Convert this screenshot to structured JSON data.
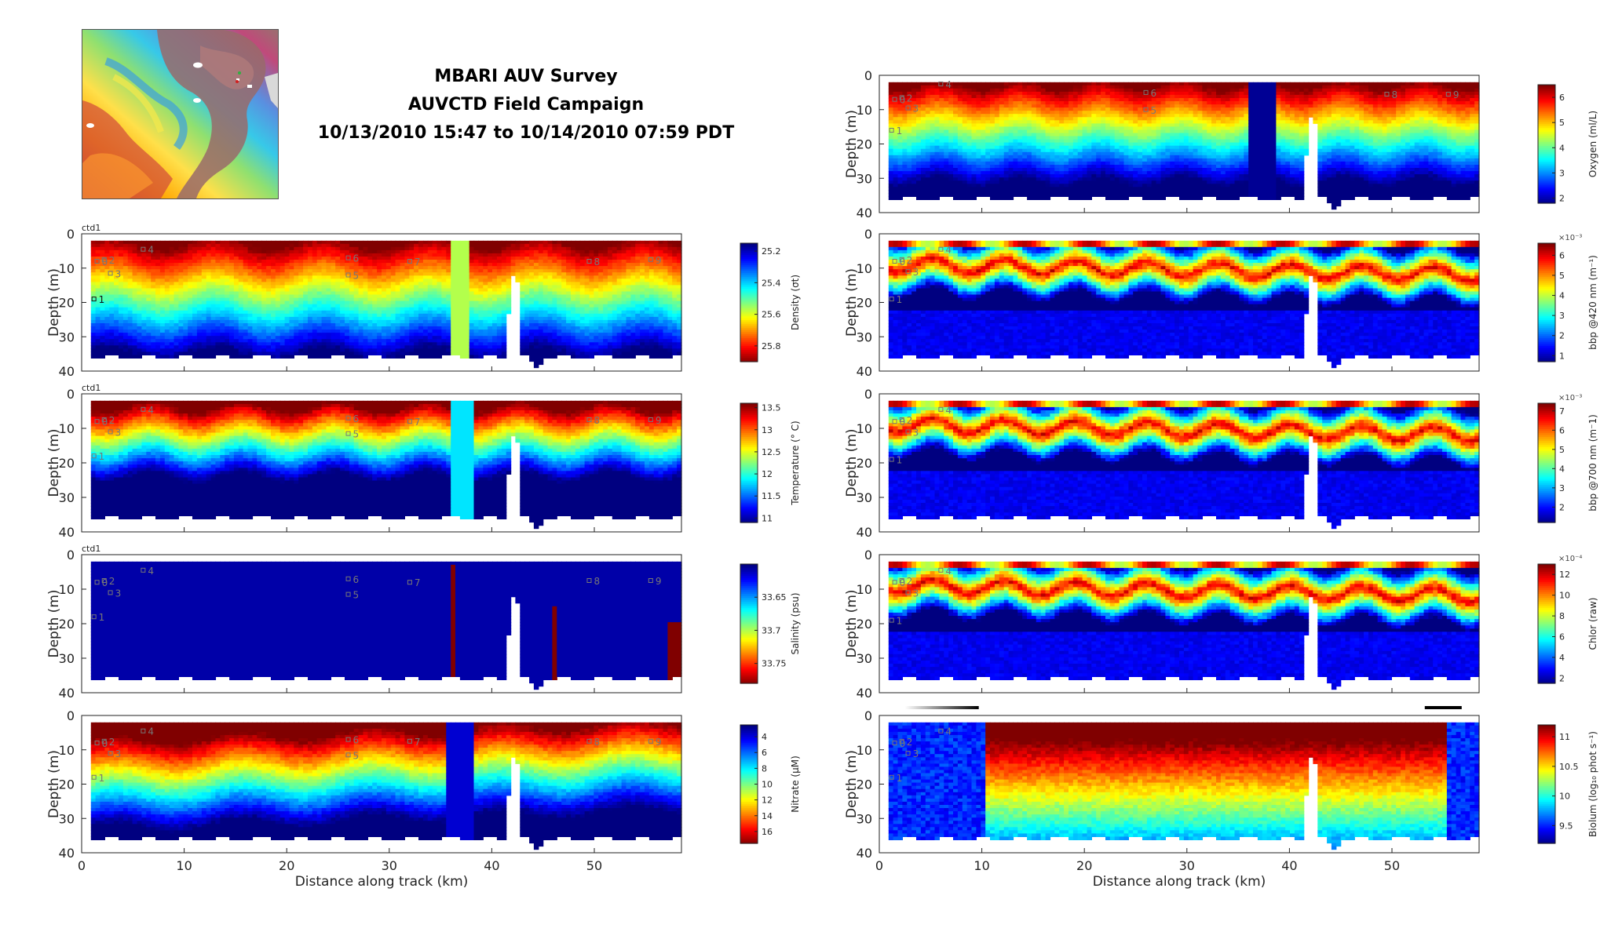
{
  "title_lines": [
    "MBARI AUV Survey",
    "AUVCTD Field Campaign",
    "10/13/2010 15:47 to 10/14/2010 07:59 PDT"
  ],
  "inset_map": {
    "name": "survey-area-map"
  },
  "chart_data": [
    {
      "type": "heatmap",
      "name": "Density panel",
      "ylabel": "Depth (m)",
      "xlabel": "",
      "corner_label": "ctd1",
      "xlim": [
        0,
        58.5
      ],
      "ylim": [
        40,
        0
      ],
      "xticks": [
        0,
        10,
        20,
        30,
        40,
        50
      ],
      "yticks": [
        0,
        10,
        20,
        30,
        40
      ],
      "colorbar": {
        "label": "Density (σt)",
        "tick_labels": [
          "25.2",
          "25.4",
          "25.6",
          "25.8"
        ],
        "tick_values": [
          25.2,
          25.4,
          25.6,
          25.8
        ],
        "range": [
          25.15,
          25.9
        ],
        "reversed": true,
        "colormap": "jet"
      },
      "profile": "density",
      "stations": [
        {
          "label": "0",
          "x": 1.5,
          "y": 8
        },
        {
          "label": "1",
          "x": 1.2,
          "y": 19
        },
        {
          "label": "2",
          "x": 2.2,
          "y": 7.5
        },
        {
          "label": "3",
          "x": 2.8,
          "y": 11.5
        },
        {
          "label": "4",
          "x": 6,
          "y": 4.5
        },
        {
          "label": "5",
          "x": 26,
          "y": 12
        },
        {
          "label": "6",
          "x": 26,
          "y": 7
        },
        {
          "label": "7",
          "x": 32,
          "y": 8
        },
        {
          "label": "8",
          "x": 49.5,
          "y": 8
        },
        {
          "label": "9",
          "x": 55.5,
          "y": 7.5
        }
      ]
    },
    {
      "type": "heatmap",
      "name": "Temperature panel",
      "ylabel": "Depth (m)",
      "xlabel": "",
      "corner_label": "ctd1",
      "xlim": [
        0,
        58.5
      ],
      "ylim": [
        40,
        0
      ],
      "xticks": [
        0,
        10,
        20,
        30,
        40,
        50
      ],
      "yticks": [
        0,
        10,
        20,
        30,
        40
      ],
      "colorbar": {
        "label": "Temperature (° C)",
        "tick_labels": [
          "13.5",
          "13",
          "12.5",
          "12",
          "11.5",
          "11"
        ],
        "tick_values": [
          13.5,
          13,
          12.5,
          12,
          11.5,
          11
        ],
        "range": [
          10.9,
          13.6
        ],
        "reversed": false,
        "colormap": "jet"
      },
      "profile": "temperature",
      "stations": [
        {
          "label": "0",
          "x": 1.5,
          "y": 8
        },
        {
          "label": "1",
          "x": 1.2,
          "y": 18
        },
        {
          "label": "2",
          "x": 2.2,
          "y": 7.5
        },
        {
          "label": "3",
          "x": 2.8,
          "y": 11
        },
        {
          "label": "4",
          "x": 6,
          "y": 4.5
        },
        {
          "label": "5",
          "x": 26,
          "y": 11.5
        },
        {
          "label": "6",
          "x": 26,
          "y": 7
        },
        {
          "label": "7",
          "x": 32,
          "y": 8
        },
        {
          "label": "8",
          "x": 49.5,
          "y": 7.5
        },
        {
          "label": "9",
          "x": 55.5,
          "y": 7.5
        }
      ]
    },
    {
      "type": "heatmap",
      "name": "Salinity panel",
      "ylabel": "Depth (m)",
      "xlabel": "",
      "corner_label": "ctd1",
      "xlim": [
        0,
        58.5
      ],
      "ylim": [
        40,
        0
      ],
      "xticks": [
        0,
        10,
        20,
        30,
        40,
        50
      ],
      "yticks": [
        0,
        10,
        20,
        30,
        40
      ],
      "colorbar": {
        "label": "Salinity (psu)",
        "tick_labels": [
          "33.65",
          "33.7",
          "33.75"
        ],
        "tick_values": [
          33.65,
          33.7,
          33.75
        ],
        "range": [
          33.6,
          33.78
        ],
        "reversed": true,
        "colormap": "jet"
      },
      "profile": "salinity",
      "stations": [
        {
          "label": "0",
          "x": 1.5,
          "y": 8
        },
        {
          "label": "1",
          "x": 1.2,
          "y": 18
        },
        {
          "label": "2",
          "x": 2.2,
          "y": 7.5
        },
        {
          "label": "3",
          "x": 2.8,
          "y": 11
        },
        {
          "label": "4",
          "x": 6,
          "y": 4.5
        },
        {
          "label": "5",
          "x": 26,
          "y": 11.5
        },
        {
          "label": "6",
          "x": 26,
          "y": 7
        },
        {
          "label": "7",
          "x": 32,
          "y": 8
        },
        {
          "label": "8",
          "x": 49.5,
          "y": 7.5
        },
        {
          "label": "9",
          "x": 55.5,
          "y": 7.5
        }
      ]
    },
    {
      "type": "heatmap",
      "name": "Nitrate panel",
      "ylabel": "Depth (m)",
      "xlabel": "Distance along track (km)",
      "corner_label": "",
      "xlim": [
        0,
        58.5
      ],
      "ylim": [
        40,
        0
      ],
      "xticks": [
        0,
        10,
        20,
        30,
        40,
        50
      ],
      "yticks": [
        0,
        10,
        20,
        30,
        40
      ],
      "colorbar": {
        "label": "Nitrate (μM)",
        "tick_labels": [
          "4",
          "6",
          "8",
          "10",
          "12",
          "14",
          "16"
        ],
        "tick_values": [
          4,
          6,
          8,
          10,
          12,
          14,
          16
        ],
        "range": [
          2.5,
          17.5
        ],
        "reversed": true,
        "colormap": "jet"
      },
      "profile": "nitrate",
      "stations": [
        {
          "label": "0",
          "x": 1.5,
          "y": 8
        },
        {
          "label": "1",
          "x": 1.2,
          "y": 18
        },
        {
          "label": "2",
          "x": 2.2,
          "y": 7.5
        },
        {
          "label": "3",
          "x": 2.8,
          "y": 11
        },
        {
          "label": "4",
          "x": 6,
          "y": 4.5
        },
        {
          "label": "5",
          "x": 26,
          "y": 11.5
        },
        {
          "label": "6",
          "x": 26,
          "y": 7
        },
        {
          "label": "7",
          "x": 32,
          "y": 7.5
        },
        {
          "label": "8",
          "x": 49.5,
          "y": 7.5
        },
        {
          "label": "9",
          "x": 55.5,
          "y": 7.5
        }
      ]
    },
    {
      "type": "heatmap",
      "name": "Oxygen panel",
      "ylabel": "Depth (m)",
      "xlabel": "",
      "corner_label": "",
      "xlim": [
        0,
        58.5
      ],
      "ylim": [
        40,
        0
      ],
      "xticks": [
        0,
        10,
        20,
        30,
        40,
        50
      ],
      "yticks": [
        0,
        10,
        20,
        30,
        40
      ],
      "colorbar": {
        "label": "Oxygen (ml/L)",
        "tick_labels": [
          "6",
          "5",
          "4",
          "3",
          "2"
        ],
        "tick_values": [
          6,
          5,
          4,
          3,
          2
        ],
        "range": [
          1.8,
          6.5
        ],
        "reversed": false,
        "colormap": "jet"
      },
      "profile": "oxygen",
      "stations": [
        {
          "label": "0",
          "x": 1.5,
          "y": 7
        },
        {
          "label": "1",
          "x": 1.2,
          "y": 16
        },
        {
          "label": "2",
          "x": 2.2,
          "y": 6.5
        },
        {
          "label": "3",
          "x": 2.8,
          "y": 9.5
        },
        {
          "label": "4",
          "x": 6,
          "y": 2.5
        },
        {
          "label": "5",
          "x": 26,
          "y": 10
        },
        {
          "label": "6",
          "x": 26,
          "y": 5
        },
        {
          "label": "8",
          "x": 49.5,
          "y": 5.5
        },
        {
          "label": "9",
          "x": 55.5,
          "y": 5.5
        }
      ]
    },
    {
      "type": "heatmap",
      "name": "bbp 420 panel",
      "ylabel": "Depth (m)",
      "xlabel": "",
      "corner_label": "",
      "xlim": [
        0,
        58.5
      ],
      "ylim": [
        40,
        0
      ],
      "xticks": [
        0,
        10,
        20,
        30,
        40,
        50
      ],
      "yticks": [
        0,
        10,
        20,
        30,
        40
      ],
      "colorbar": {
        "label": "bbp @420 nm (m⁻¹)",
        "exponent": "×10⁻³",
        "tick_labels": [
          "6",
          "5",
          "4",
          "3",
          "2",
          "1"
        ],
        "tick_values": [
          6,
          5,
          4,
          3,
          2,
          1
        ],
        "range": [
          0.7,
          6.6
        ],
        "reversed": false,
        "colormap": "jet"
      },
      "profile": "bbp",
      "stations": [
        {
          "label": "0",
          "x": 1.5,
          "y": 8
        },
        {
          "label": "1",
          "x": 1.2,
          "y": 19
        },
        {
          "label": "2",
          "x": 2.2,
          "y": 7.5
        },
        {
          "label": "3",
          "x": 2.8,
          "y": 11
        },
        {
          "label": "4",
          "x": 6,
          "y": 4.5
        }
      ]
    },
    {
      "type": "heatmap",
      "name": "bbp 700 panel",
      "ylabel": "Depth (m)",
      "xlabel": "",
      "corner_label": "",
      "xlim": [
        0,
        58.5
      ],
      "ylim": [
        40,
        0
      ],
      "xticks": [
        0,
        10,
        20,
        30,
        40,
        50
      ],
      "yticks": [
        0,
        10,
        20,
        30,
        40
      ],
      "colorbar": {
        "label": "bbp @700 nm (m⁻1)",
        "exponent": "×10⁻³",
        "tick_labels": [
          "7",
          "6",
          "5",
          "4",
          "3",
          "2"
        ],
        "tick_values": [
          7,
          6,
          5,
          4,
          3,
          2
        ],
        "range": [
          1.2,
          7.4
        ],
        "reversed": false,
        "colormap": "jet"
      },
      "profile": "bbp",
      "stations": [
        {
          "label": "0",
          "x": 1.5,
          "y": 8
        },
        {
          "label": "1",
          "x": 1.2,
          "y": 19
        },
        {
          "label": "2",
          "x": 2.2,
          "y": 7.5
        },
        {
          "label": "3",
          "x": 2.8,
          "y": 11
        },
        {
          "label": "4",
          "x": 6,
          "y": 4.5
        }
      ]
    },
    {
      "type": "heatmap",
      "name": "Chlorophyll panel",
      "ylabel": "Depth (m)",
      "xlabel": "",
      "corner_label": "",
      "xlim": [
        0,
        58.5
      ],
      "ylim": [
        40,
        0
      ],
      "xticks": [
        0,
        10,
        20,
        30,
        40,
        50
      ],
      "yticks": [
        0,
        10,
        20,
        30,
        40
      ],
      "colorbar": {
        "label": "Chlor (raw)",
        "exponent": "×10⁻⁴",
        "tick_labels": [
          "12",
          "10",
          "8",
          "6",
          "4",
          "2"
        ],
        "tick_values": [
          12,
          10,
          8,
          6,
          4,
          2
        ],
        "range": [
          1.5,
          13
        ],
        "reversed": false,
        "colormap": "jet"
      },
      "profile": "bbp",
      "stations": [
        {
          "label": "0",
          "x": 1.5,
          "y": 8
        },
        {
          "label": "1",
          "x": 1.2,
          "y": 19
        },
        {
          "label": "2",
          "x": 2.2,
          "y": 7.5
        },
        {
          "label": "3",
          "x": 2.8,
          "y": 11
        },
        {
          "label": "4",
          "x": 6,
          "y": 4.5
        }
      ]
    },
    {
      "type": "heatmap",
      "name": "Biolum panel",
      "ylabel": "Depth (m)",
      "xlabel": "Distance along track (km)",
      "corner_label": "",
      "xlim": [
        0,
        58.5
      ],
      "ylim": [
        40,
        0
      ],
      "xticks": [
        0,
        10,
        20,
        30,
        40,
        50
      ],
      "yticks": [
        0,
        10,
        20,
        30,
        40
      ],
      "colorbar": {
        "label": "Biolum (log₁₀ phot s⁻¹)",
        "tick_labels": [
          "11",
          "10.5",
          "10",
          "9.5"
        ],
        "tick_values": [
          11,
          10.5,
          10,
          9.5
        ],
        "range": [
          9.2,
          11.2
        ],
        "reversed": false,
        "colormap": "jet"
      },
      "profile": "biolum",
      "night_bars": [
        {
          "from_km": 2.5,
          "to_km": 9.7,
          "gradient": true
        },
        {
          "from_km": 53.2,
          "to_km": 56.8,
          "gradient": false
        }
      ],
      "stations": [
        {
          "label": "0",
          "x": 1.5,
          "y": 8
        },
        {
          "label": "1",
          "x": 1.2,
          "y": 18
        },
        {
          "label": "2",
          "x": 2.2,
          "y": 7.5
        },
        {
          "label": "3",
          "x": 2.8,
          "y": 11
        },
        {
          "label": "4",
          "x": 6,
          "y": 4.5
        }
      ]
    }
  ]
}
